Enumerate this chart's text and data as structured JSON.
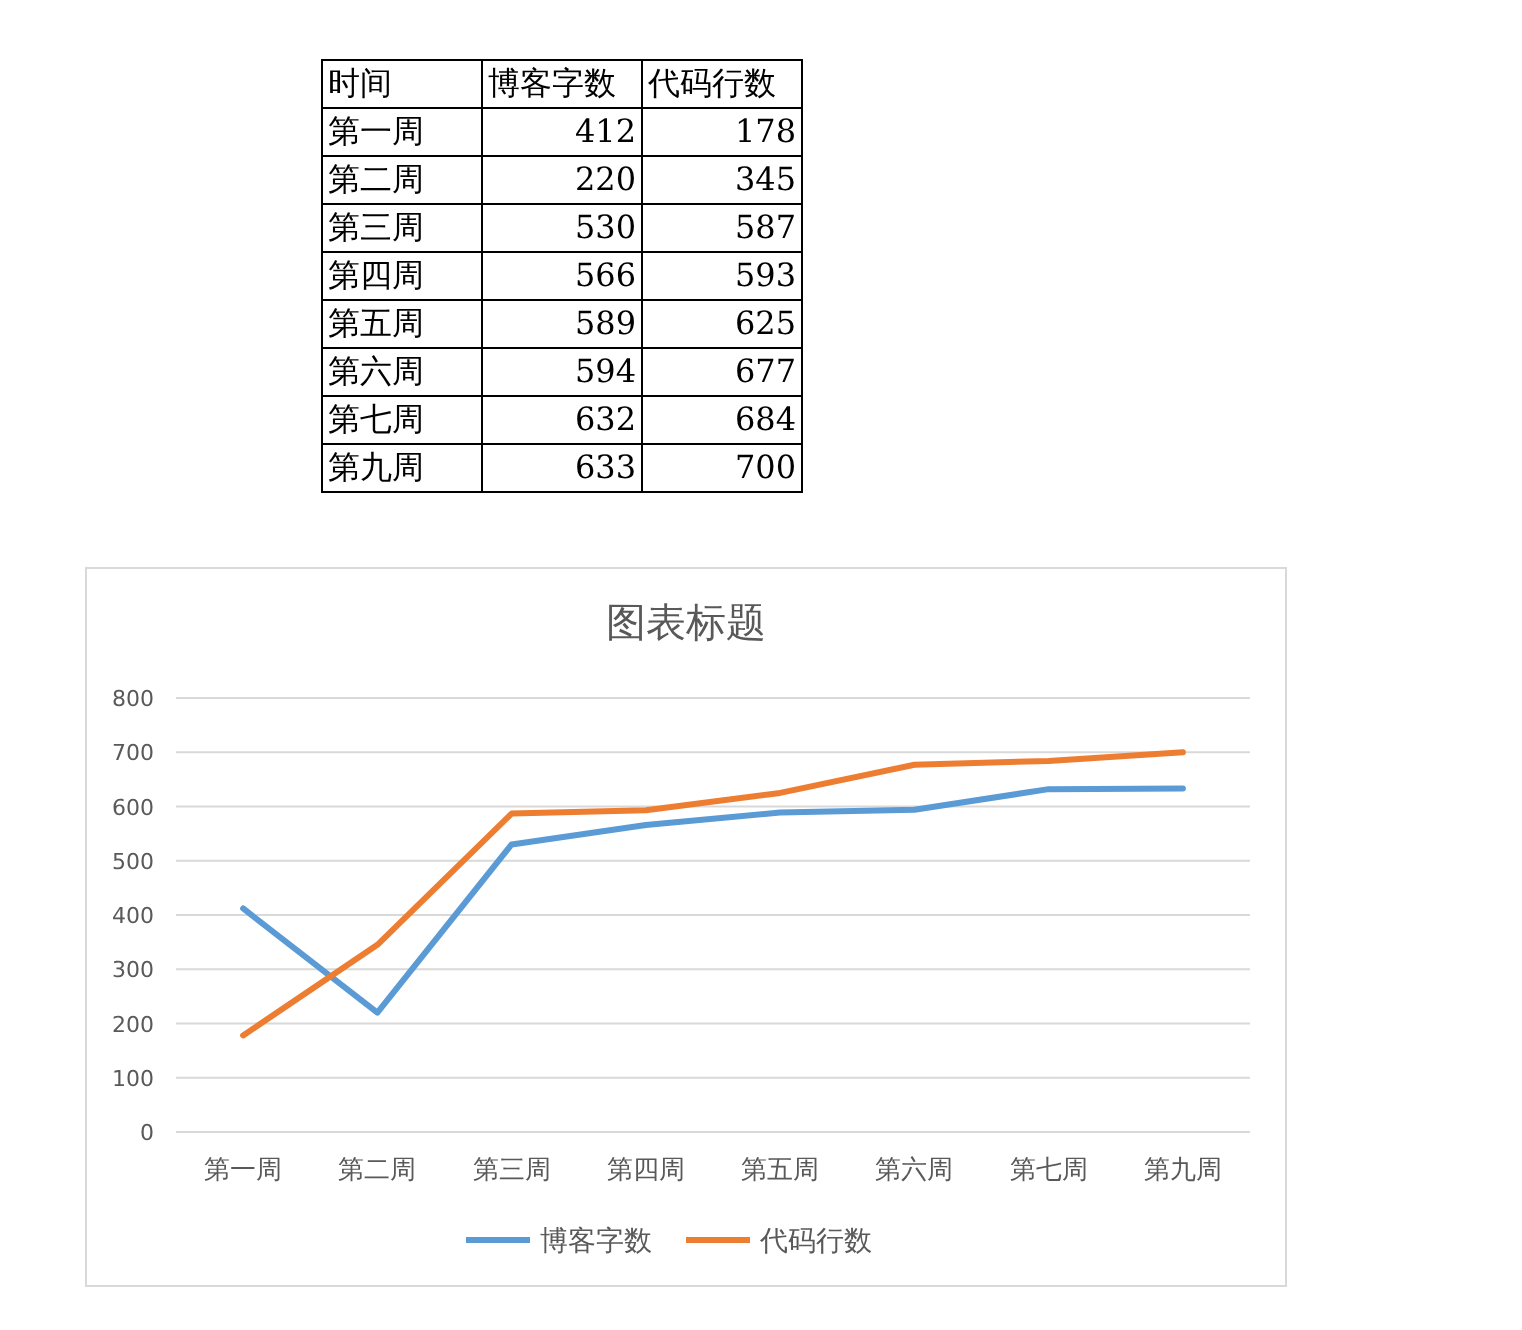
{
  "chart_data": [
    {
      "type": "other",
      "xlabel": "时间",
      "categories": [
        "第一周",
        "第二周",
        "第三周",
        "第四周",
        "第五周",
        "第六周",
        "第七周",
        "第九周"
      ],
      "series": [
        {
          "name": "博客字数",
          "values": [
            412,
            220,
            530,
            566,
            589,
            594,
            632,
            633
          ]
        },
        {
          "name": "代码行数",
          "values": [
            178,
            345,
            587,
            593,
            625,
            677,
            684,
            700
          ]
        }
      ],
      "data_labels": true,
      "legend": "top"
    },
    {
      "type": "line",
      "title": "图表标题",
      "categories": [
        "第一周",
        "第二周",
        "第三周",
        "第四周",
        "第五周",
        "第六周",
        "第七周",
        "第九周"
      ],
      "series": [
        {
          "name": "博客字数",
          "color": "#5b9bd5",
          "values": [
            412,
            220,
            530,
            566,
            589,
            594,
            632,
            633
          ]
        },
        {
          "name": "代码行数",
          "color": "#ed7d31",
          "values": [
            178,
            345,
            587,
            593,
            625,
            677,
            684,
            700
          ]
        }
      ],
      "ylim": [
        0,
        800
      ],
      "yticks": [
        0,
        100,
        200,
        300,
        400,
        500,
        600,
        700,
        800
      ],
      "grid": "y",
      "legend": "bottom",
      "line_style": "solid",
      "marker": "none"
    }
  ]
}
